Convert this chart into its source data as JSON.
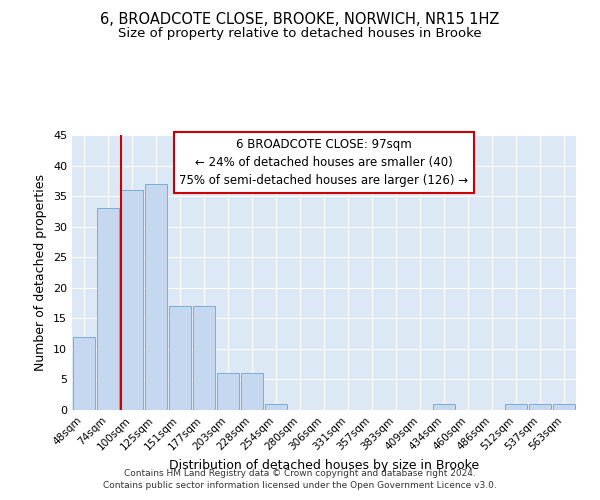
{
  "title1": "6, BROADCOTE CLOSE, BROOKE, NORWICH, NR15 1HZ",
  "title2": "Size of property relative to detached houses in Brooke",
  "xlabel": "Distribution of detached houses by size in Brooke",
  "ylabel": "Number of detached properties",
  "categories": [
    "48sqm",
    "74sqm",
    "100sqm",
    "125sqm",
    "151sqm",
    "177sqm",
    "203sqm",
    "228sqm",
    "254sqm",
    "280sqm",
    "306sqm",
    "331sqm",
    "357sqm",
    "383sqm",
    "409sqm",
    "434sqm",
    "460sqm",
    "486sqm",
    "512sqm",
    "537sqm",
    "563sqm"
  ],
  "values": [
    12,
    33,
    36,
    37,
    17,
    17,
    6,
    6,
    1,
    0,
    0,
    0,
    0,
    0,
    0,
    1,
    0,
    0,
    1,
    1,
    1
  ],
  "bar_color": "#c5d8f0",
  "bar_edge_color": "#7aadd4",
  "grid_color": "#dce8f5",
  "red_line_x": 2.0,
  "annotation_line1": "6 BROADCOTE CLOSE: 97sqm",
  "annotation_line2": "← 24% of detached houses are smaller (40)",
  "annotation_line3": "75% of semi-detached houses are larger (126) →",
  "annotation_box_color": "#ffffff",
  "annotation_border_color": "#cc0000",
  "red_line_color": "#cc0000",
  "ylim": [
    0,
    45
  ],
  "yticks": [
    0,
    5,
    10,
    15,
    20,
    25,
    30,
    35,
    40,
    45
  ],
  "footer": "Contains HM Land Registry data © Crown copyright and database right 2024.\nContains public sector information licensed under the Open Government Licence v3.0.",
  "title1_fontsize": 10.5,
  "title2_fontsize": 9.5,
  "xlabel_fontsize": 9,
  "ylabel_fontsize": 9,
  "ann_fontsize": 8.5,
  "tick_fontsize": 7.5,
  "ytick_fontsize": 8
}
